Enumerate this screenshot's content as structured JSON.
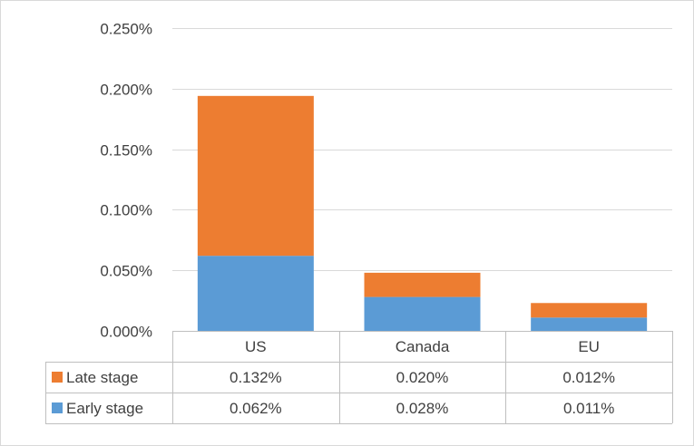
{
  "chart_data": {
    "type": "bar",
    "stacked": true,
    "categories": [
      "US",
      "Canada",
      "EU"
    ],
    "series": [
      {
        "name": "Early stage",
        "values": [
          0.062,
          0.028,
          0.011
        ],
        "labels": [
          "0.062%",
          "0.028%",
          "0.011%"
        ],
        "color": "#5b9bd5"
      },
      {
        "name": "Late stage",
        "values": [
          0.132,
          0.02,
          0.012
        ],
        "labels": [
          "0.132%",
          "0.020%",
          "0.012%"
        ],
        "color": "#ed7d31"
      }
    ],
    "yunit": "%",
    "ylim": [
      0,
      0.25
    ],
    "yticks": [
      0,
      0.05,
      0.1,
      0.15,
      0.2,
      0.25
    ],
    "ytick_labels": [
      "0.000%",
      "0.050%",
      "0.100%",
      "0.150%",
      "0.200%",
      "0.250%"
    ],
    "grid": true,
    "legend": "data-table",
    "data_table_rows": [
      "Late stage",
      "Early stage"
    ]
  }
}
